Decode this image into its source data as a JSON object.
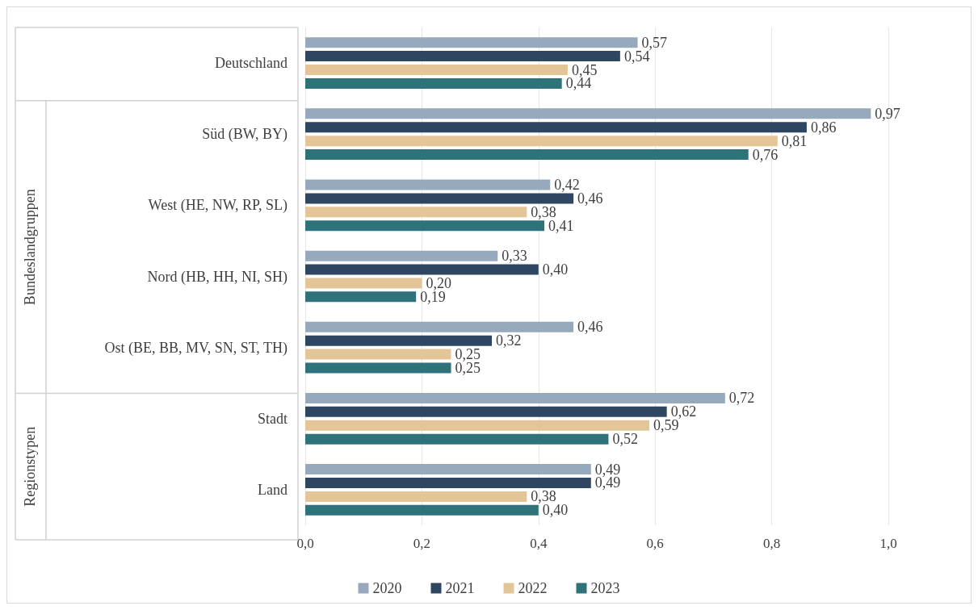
{
  "chart_data": {
    "type": "bar",
    "orientation": "horizontal",
    "categories": [
      "Deutschland",
      "Süd (BW, BY)",
      "West (HE, NW, RP, SL)",
      "Nord (HB, HH, NI, SH)",
      "Ost (BE, BB, MV, SN, ST, TH)",
      "Stadt",
      "Land"
    ],
    "series": [
      {
        "name": "2020",
        "color": "#96a9bd",
        "values": [
          0.57,
          0.97,
          0.42,
          0.33,
          0.46,
          0.72,
          0.49
        ],
        "value_labels": [
          "0,57",
          "0,97",
          "0,42",
          "0,33",
          "0,46",
          "0,72",
          "0,49"
        ]
      },
      {
        "name": "2021",
        "color": "#2e4662",
        "values": [
          0.54,
          0.86,
          0.46,
          0.4,
          0.32,
          0.62,
          0.49
        ],
        "value_labels": [
          "0,54",
          "0,86",
          "0,46",
          "0,40",
          "0,32",
          "0,62",
          "0,49"
        ]
      },
      {
        "name": "2022",
        "color": "#e3c597",
        "values": [
          0.45,
          0.81,
          0.38,
          0.2,
          0.25,
          0.59,
          0.38
        ],
        "value_labels": [
          "0,45",
          "0,81",
          "0,38",
          "0,20",
          "0,25",
          "0,59",
          "0,38"
        ]
      },
      {
        "name": "2023",
        "color": "#2e727a",
        "values": [
          0.44,
          0.76,
          0.41,
          0.19,
          0.25,
          0.52,
          0.4
        ],
        "value_labels": [
          "0,44",
          "0,76",
          "0,41",
          "0,19",
          "0,25",
          "0,52",
          "0,40"
        ]
      }
    ],
    "xlim": [
      0,
      1.0
    ],
    "xticks": [
      {
        "value": 0,
        "label": "0,0"
      },
      {
        "value": 0.2,
        "label": "0,2"
      },
      {
        "value": 0.4,
        "label": "0,4"
      },
      {
        "value": 0.6,
        "label": "0,6"
      },
      {
        "value": 0.8,
        "label": "0,8"
      },
      {
        "value": 1.0,
        "label": "1,0"
      }
    ],
    "annotations": [
      "Bundeslandgruppen",
      "Regionstypen"
    ],
    "grid": "x",
    "legend": "bottom"
  }
}
